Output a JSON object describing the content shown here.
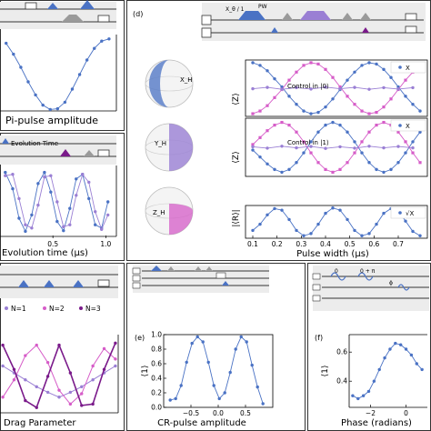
{
  "colors": {
    "blue": "#4a72c4",
    "purple": "#7a1a8a",
    "magenta": "#d65cc8",
    "light_purple": "#9a7fd4",
    "teal": "#2f8a8a",
    "gray": "#9a9a9a"
  },
  "panel_labels": {
    "d": "(d)",
    "e": "(e)",
    "f": "(f)"
  },
  "pulse_labels": {
    "x_theta": "X_θ / 1",
    "pw": "PW",
    "evolution_time": "Evolution Time",
    "zero": "0",
    "zero_plus_pi": "0 + π",
    "phi": "ϕ"
  },
  "bloch_labels": [
    "X_H",
    "Y_H",
    "Z_H"
  ],
  "chart_data": [
    {
      "id": "a",
      "type": "scatter",
      "xlabel": "Pi-pulse amplitude",
      "ylabel": "",
      "x": [
        0.1,
        0.16,
        0.22,
        0.28,
        0.34,
        0.4,
        0.46,
        0.52,
        0.58,
        0.64,
        0.7,
        0.76,
        0.82,
        0.88,
        0.94
      ],
      "y": [
        0.93,
        0.78,
        0.6,
        0.4,
        0.22,
        0.08,
        0.02,
        0.03,
        0.12,
        0.3,
        0.5,
        0.7,
        0.86,
        0.96,
        0.99
      ]
    },
    {
      "id": "b",
      "type": "scatter",
      "xlabel": "Evolution time (μs)",
      "xticks": [
        0.5,
        1.0
      ],
      "xlim": [
        0,
        1.1
      ],
      "series": [
        {
          "name": "",
          "x": [
            0.05,
            0.12,
            0.18,
            0.24,
            0.3,
            0.36,
            0.42,
            0.48,
            0.54,
            0.6,
            0.66,
            0.72,
            0.78,
            0.84,
            0.9,
            0.96,
            1.02
          ],
          "y": [
            0.95,
            0.7,
            0.25,
            0.05,
            0.3,
            0.78,
            0.95,
            0.65,
            0.2,
            0.06,
            0.4,
            0.85,
            0.92,
            0.55,
            0.15,
            0.1,
            0.5
          ]
        },
        {
          "name": "",
          "x": [
            0.05,
            0.12,
            0.18,
            0.24,
            0.3,
            0.36,
            0.42,
            0.48,
            0.54,
            0.6,
            0.66,
            0.72,
            0.78,
            0.84,
            0.9,
            0.96,
            1.02
          ],
          "y": [
            0.9,
            0.92,
            0.55,
            0.15,
            0.1,
            0.45,
            0.88,
            0.9,
            0.5,
            0.12,
            0.15,
            0.6,
            0.92,
            0.8,
            0.35,
            0.08,
            0.3
          ]
        }
      ]
    },
    {
      "id": "d1",
      "type": "scatter",
      "title": "Control in |0⟩",
      "ylabel": "⟨Z⟩",
      "xlim": [
        0.07,
        0.82
      ],
      "legend": [
        "X"
      ],
      "series": [
        {
          "name": "X",
          "x": [
            0.1,
            0.13,
            0.16,
            0.19,
            0.22,
            0.25,
            0.28,
            0.31,
            0.34,
            0.37,
            0.4,
            0.43,
            0.46,
            0.49,
            0.52,
            0.55,
            0.58,
            0.61,
            0.64,
            0.67,
            0.7,
            0.73,
            0.76,
            0.79
          ],
          "y": [
            0.95,
            0.85,
            0.65,
            0.35,
            0.05,
            -0.3,
            -0.6,
            -0.85,
            -0.95,
            -0.9,
            -0.7,
            -0.4,
            -0.05,
            0.3,
            0.6,
            0.85,
            0.95,
            0.9,
            0.7,
            0.4,
            0.05,
            -0.3,
            -0.6,
            -0.85
          ]
        },
        {
          "name": "",
          "x": [
            0.1,
            0.13,
            0.16,
            0.19,
            0.22,
            0.25,
            0.28,
            0.31,
            0.34,
            0.37,
            0.4,
            0.43,
            0.46,
            0.49,
            0.52,
            0.55,
            0.58,
            0.61,
            0.64,
            0.67,
            0.7,
            0.73,
            0.76,
            0.79
          ],
          "y": [
            -0.95,
            -0.85,
            -0.65,
            -0.35,
            -0.05,
            0.3,
            0.6,
            0.85,
            0.95,
            0.9,
            0.7,
            0.4,
            0.05,
            -0.3,
            -0.6,
            -0.85,
            -0.95,
            -0.9,
            -0.7,
            -0.4,
            -0.05,
            0.3,
            0.6,
            0.85
          ]
        },
        {
          "name": "",
          "x": [
            0.1,
            0.16,
            0.22,
            0.28,
            0.34,
            0.4,
            0.46,
            0.52,
            0.58,
            0.64,
            0.7,
            0.76
          ],
          "y": [
            -0.02,
            0.03,
            -0.04,
            0.02,
            -0.03,
            0.04,
            -0.02,
            0.03,
            -0.04,
            0.02,
            -0.03,
            0.02
          ]
        }
      ]
    },
    {
      "id": "d2",
      "type": "scatter",
      "title": "Control in |1⟩",
      "ylabel": "⟨Z⟩",
      "xlim": [
        0.07,
        0.82
      ],
      "legend": [
        "X"
      ],
      "series": [
        {
          "name": "X",
          "x": [
            0.1,
            0.13,
            0.16,
            0.19,
            0.22,
            0.25,
            0.28,
            0.31,
            0.34,
            0.37,
            0.4,
            0.43,
            0.46,
            0.49,
            0.52,
            0.55,
            0.58,
            0.61,
            0.64,
            0.67,
            0.7,
            0.73,
            0.76,
            0.79
          ],
          "y": [
            -0.1,
            -0.35,
            -0.6,
            -0.8,
            -0.9,
            -0.8,
            -0.55,
            -0.2,
            0.2,
            0.55,
            0.8,
            0.9,
            0.8,
            0.55,
            0.2,
            -0.2,
            -0.55,
            -0.8,
            -0.9,
            -0.8,
            -0.55,
            -0.2,
            0.2,
            0.55
          ]
        },
        {
          "name": "",
          "x": [
            0.1,
            0.13,
            0.16,
            0.19,
            0.22,
            0.25,
            0.28,
            0.31,
            0.34,
            0.37,
            0.4,
            0.43,
            0.46,
            0.49,
            0.52,
            0.55,
            0.58,
            0.61,
            0.64,
            0.67,
            0.7,
            0.73,
            0.76,
            0.79
          ],
          "y": [
            0.1,
            0.35,
            0.6,
            0.8,
            0.9,
            0.8,
            0.55,
            0.2,
            -0.2,
            -0.55,
            -0.8,
            -0.9,
            -0.8,
            -0.55,
            -0.2,
            0.2,
            0.55,
            0.8,
            0.9,
            0.8,
            0.55,
            0.2,
            -0.2,
            -0.55
          ]
        },
        {
          "name": "",
          "x": [
            0.1,
            0.16,
            0.22,
            0.28,
            0.34,
            0.4,
            0.46,
            0.52,
            0.58,
            0.64,
            0.7,
            0.76
          ],
          "y": [
            0.02,
            -0.03,
            0.04,
            -0.02,
            0.03,
            -0.04,
            0.02,
            -0.03,
            0.04,
            -0.02,
            0.03,
            -0.02
          ]
        }
      ]
    },
    {
      "id": "d3",
      "type": "scatter",
      "ylabel": "|⟨R⟩|",
      "xlabel": "Pulse width (μs)",
      "xticks": [
        0.1,
        0.2,
        0.3,
        0.4,
        0.5,
        0.6,
        0.7
      ],
      "xlim": [
        0.07,
        0.82
      ],
      "legend": [
        "√X"
      ],
      "series": [
        {
          "name": "√X",
          "x": [
            0.1,
            0.13,
            0.16,
            0.19,
            0.22,
            0.25,
            0.28,
            0.31,
            0.34,
            0.37,
            0.4,
            0.43,
            0.46,
            0.49,
            0.52,
            0.55,
            0.58,
            0.61,
            0.64,
            0.67,
            0.7,
            0.73,
            0.76,
            0.79
          ],
          "y": [
            0.25,
            0.45,
            0.75,
            0.95,
            0.9,
            0.6,
            0.25,
            0.08,
            0.15,
            0.45,
            0.8,
            0.97,
            0.9,
            0.6,
            0.25,
            0.08,
            0.15,
            0.45,
            0.8,
            0.95,
            0.88,
            0.55,
            0.22,
            0.08
          ]
        }
      ]
    },
    {
      "id": "c",
      "type": "line",
      "xlabel": "Drag Parameter",
      "legend": [
        "N=1",
        "N=2",
        "N=3"
      ],
      "series": [
        {
          "name": "N=1",
          "x": [
            -1.0,
            -0.8,
            -0.6,
            -0.4,
            -0.2,
            0.0,
            0.2,
            0.4,
            0.6,
            0.8,
            1.0
          ],
          "y": [
            0.65,
            0.55,
            0.45,
            0.35,
            0.27,
            0.2,
            0.27,
            0.35,
            0.45,
            0.55,
            0.65
          ]
        },
        {
          "name": "N=2",
          "x": [
            -1.0,
            -0.8,
            -0.6,
            -0.4,
            -0.2,
            0.0,
            0.2,
            0.4,
            0.6,
            0.8,
            1.0
          ],
          "y": [
            0.2,
            0.45,
            0.8,
            0.95,
            0.7,
            0.3,
            0.1,
            0.25,
            0.65,
            0.9,
            0.75
          ]
        },
        {
          "name": "N=3",
          "x": [
            -1.0,
            -0.8,
            -0.6,
            -0.4,
            -0.2,
            0.0,
            0.2,
            0.4,
            0.6,
            0.8,
            1.0
          ],
          "y": [
            0.95,
            0.6,
            0.15,
            0.05,
            0.5,
            0.95,
            0.55,
            0.08,
            0.1,
            0.6,
            0.98
          ]
        }
      ]
    },
    {
      "id": "e",
      "type": "line",
      "xlabel": "CR-pulse amplitude",
      "ylabel": "⟨1⟩",
      "xlim": [
        -1.0,
        1.0
      ],
      "ylim": [
        0,
        1.0
      ],
      "xticks": [
        -0.5,
        0.0,
        0.5
      ],
      "yticks": [
        0.0,
        0.2,
        0.4,
        0.6,
        0.8,
        1.0
      ],
      "xtick_labels": [
        "−0.5",
        "0.0",
        "0.5"
      ],
      "ytick_labels": [
        "0.0",
        "0.2",
        "0.4",
        "0.6",
        "0.8",
        "1.0"
      ],
      "x": [
        -0.88,
        -0.78,
        -0.68,
        -0.58,
        -0.48,
        -0.38,
        -0.28,
        -0.18,
        -0.08,
        0.02,
        0.12,
        0.22,
        0.32,
        0.42,
        0.52,
        0.62,
        0.72,
        0.82
      ],
      "y": [
        0.1,
        0.12,
        0.3,
        0.62,
        0.88,
        0.97,
        0.9,
        0.62,
        0.3,
        0.12,
        0.2,
        0.48,
        0.8,
        0.97,
        0.9,
        0.58,
        0.28,
        0.05
      ]
    },
    {
      "id": "f",
      "type": "line",
      "xlabel": "Phase (radians)",
      "ylabel": "⟨1⟩",
      "xlim": [
        -3.2,
        1.2
      ],
      "ylim": [
        0.22,
        0.72
      ],
      "xticks": [
        -2,
        0
      ],
      "yticks": [
        0.4,
        0.6
      ],
      "xtick_labels": [
        "−2",
        "0"
      ],
      "ytick_labels": [
        "0.4",
        "0.6"
      ],
      "x": [
        -3.0,
        -2.7,
        -2.4,
        -2.1,
        -1.8,
        -1.5,
        -1.2,
        -0.9,
        -0.6,
        -0.3,
        0.0,
        0.3,
        0.6,
        0.9
      ],
      "y": [
        0.3,
        0.28,
        0.3,
        0.33,
        0.4,
        0.48,
        0.56,
        0.62,
        0.66,
        0.65,
        0.62,
        0.58,
        0.52,
        0.48
      ]
    }
  ]
}
